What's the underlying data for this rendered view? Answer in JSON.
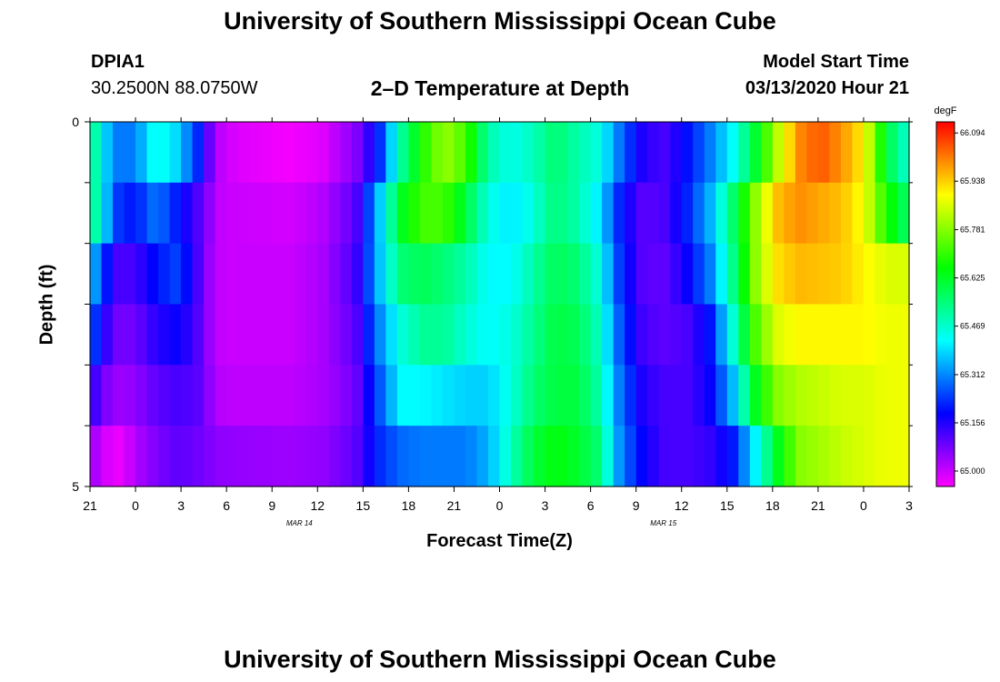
{
  "page": {
    "title_top": "University of Southern Mississippi Ocean Cube",
    "title_bottom": "University of Southern Mississippi Ocean Cube",
    "station_name": "DPIA1",
    "station_coords": "30.2500N 88.0750W",
    "plot_title": "2–D Temperature at Depth",
    "model_start_label": "Model Start Time",
    "model_start_value": "03/13/2020 Hour 21"
  },
  "chart_data": {
    "type": "heatmap",
    "title": "2–D Temperature at Depth",
    "xlabel": "Forecast Time(Z)",
    "ylabel": "Depth (ft)",
    "y_ticks": [
      "0",
      "5"
    ],
    "ylim": [
      0,
      5
    ],
    "x_ticks": [
      "21",
      "0",
      "3",
      "6",
      "9",
      "12",
      "15",
      "18",
      "21",
      "0",
      "3",
      "6",
      "9",
      "12",
      "15",
      "18",
      "21",
      "0",
      "3"
    ],
    "date_labels": [
      {
        "text": "MAR 14",
        "hour_index": 4
      },
      {
        "text": "MAR 15",
        "hour_index": 12
      }
    ],
    "colorbar": {
      "unit": "degF",
      "min": 64.95,
      "max": 66.13,
      "ticks": [
        "66.094",
        "65.938",
        "65.781",
        "65.625",
        "65.469",
        "65.312",
        "65.156",
        "65.000"
      ],
      "tick_values": [
        66.094,
        65.938,
        65.781,
        65.625,
        65.469,
        65.312,
        65.156,
        65.0
      ]
    },
    "depth_layers": 5,
    "hours_start": 0,
    "hours_end": 54,
    "rows": [
      [
        [
          0,
          65.55
        ],
        [
          1,
          65.45
        ],
        [
          2,
          65.3
        ],
        [
          4,
          65.3
        ],
        [
          6,
          65.45
        ],
        [
          8,
          65.38
        ],
        [
          10,
          65.2
        ],
        [
          11,
          65.06
        ],
        [
          12,
          65.0
        ],
        [
          13.5,
          64.98
        ],
        [
          18,
          64.96
        ],
        [
          21,
          64.98
        ],
        [
          24,
          65.06
        ],
        [
          26,
          65.2
        ],
        [
          28,
          65.5
        ],
        [
          30,
          65.68
        ],
        [
          32,
          65.8
        ],
        [
          34,
          65.72
        ],
        [
          36,
          65.5
        ],
        [
          38,
          65.44
        ],
        [
          40,
          65.48
        ],
        [
          42,
          65.56
        ],
        [
          44,
          65.5
        ],
        [
          46,
          65.45
        ],
        [
          48,
          65.28
        ],
        [
          50,
          65.15
        ],
        [
          52,
          65.12
        ],
        [
          54,
          65.2
        ],
        [
          56,
          65.3
        ],
        [
          58,
          65.42
        ],
        [
          60,
          65.6
        ],
        [
          62,
          65.82
        ],
        [
          64,
          66.0
        ],
        [
          66,
          66.05
        ],
        [
          68,
          65.99
        ],
        [
          70,
          65.9
        ],
        [
          72,
          65.6
        ],
        [
          74,
          65.45
        ]
      ],
      [
        [
          0,
          65.52
        ],
        [
          1,
          65.48
        ],
        [
          2,
          65.25
        ],
        [
          4,
          65.2
        ],
        [
          6,
          65.3
        ],
        [
          8,
          65.2
        ],
        [
          10,
          65.1
        ],
        [
          11,
          65.04
        ],
        [
          12,
          65.0
        ],
        [
          18,
          64.99
        ],
        [
          21,
          65.02
        ],
        [
          24,
          65.1
        ],
        [
          26,
          65.35
        ],
        [
          28,
          65.62
        ],
        [
          30,
          65.72
        ],
        [
          32,
          65.72
        ],
        [
          34,
          65.6
        ],
        [
          36,
          65.45
        ],
        [
          38,
          65.4
        ],
        [
          40,
          65.45
        ],
        [
          42,
          65.55
        ],
        [
          44,
          65.5
        ],
        [
          46,
          65.4
        ],
        [
          48,
          65.2
        ],
        [
          50,
          65.1
        ],
        [
          52,
          65.12
        ],
        [
          54,
          65.22
        ],
        [
          56,
          65.35
        ],
        [
          58,
          65.55
        ],
        [
          60,
          65.78
        ],
        [
          62,
          65.95
        ],
        [
          64,
          66.0
        ],
        [
          68,
          65.95
        ],
        [
          70,
          65.88
        ],
        [
          72,
          65.68
        ],
        [
          74,
          65.55
        ]
      ],
      [
        [
          0,
          65.35
        ],
        [
          1,
          65.3
        ],
        [
          2,
          65.12
        ],
        [
          4,
          65.12
        ],
        [
          6,
          65.2
        ],
        [
          8,
          65.25
        ],
        [
          10,
          65.1
        ],
        [
          11,
          65.03
        ],
        [
          12,
          65.0
        ],
        [
          18,
          65.0
        ],
        [
          21,
          65.03
        ],
        [
          24,
          65.12
        ],
        [
          26,
          65.35
        ],
        [
          28,
          65.55
        ],
        [
          30,
          65.58
        ],
        [
          32,
          65.55
        ],
        [
          34,
          65.5
        ],
        [
          36,
          65.42
        ],
        [
          38,
          65.42
        ],
        [
          40,
          65.5
        ],
        [
          42,
          65.58
        ],
        [
          44,
          65.55
        ],
        [
          46,
          65.45
        ],
        [
          48,
          65.22
        ],
        [
          50,
          65.1
        ],
        [
          52,
          65.1
        ],
        [
          54,
          65.18
        ],
        [
          56,
          65.3
        ],
        [
          58,
          65.52
        ],
        [
          60,
          65.78
        ],
        [
          62,
          65.92
        ],
        [
          64,
          65.96
        ],
        [
          68,
          65.94
        ],
        [
          70,
          65.9
        ],
        [
          72,
          65.86
        ],
        [
          74,
          65.86
        ]
      ],
      [
        [
          0,
          65.26
        ],
        [
          1,
          65.2
        ],
        [
          2,
          65.08
        ],
        [
          4,
          65.08
        ],
        [
          6,
          65.15
        ],
        [
          8,
          65.18
        ],
        [
          10,
          65.1
        ],
        [
          11,
          65.03
        ],
        [
          12,
          65.0
        ],
        [
          18,
          65.0
        ],
        [
          21,
          65.03
        ],
        [
          24,
          65.1
        ],
        [
          26,
          65.3
        ],
        [
          28,
          65.45
        ],
        [
          30,
          65.52
        ],
        [
          32,
          65.52
        ],
        [
          34,
          65.46
        ],
        [
          36,
          65.42
        ],
        [
          38,
          65.45
        ],
        [
          40,
          65.52
        ],
        [
          42,
          65.6
        ],
        [
          44,
          65.58
        ],
        [
          46,
          65.48
        ],
        [
          48,
          65.25
        ],
        [
          50,
          65.12
        ],
        [
          52,
          65.1
        ],
        [
          54,
          65.12
        ],
        [
          56,
          65.2
        ],
        [
          58,
          65.45
        ],
        [
          60,
          65.72
        ],
        [
          62,
          65.86
        ],
        [
          64,
          65.9
        ],
        [
          68,
          65.9
        ],
        [
          70,
          65.9
        ],
        [
          72,
          65.88
        ],
        [
          74,
          65.88
        ]
      ],
      [
        [
          0,
          65.15
        ],
        [
          1,
          65.1
        ],
        [
          2,
          65.04
        ],
        [
          4,
          65.05
        ],
        [
          6,
          65.1
        ],
        [
          8,
          65.12
        ],
        [
          10,
          65.1
        ],
        [
          11,
          65.04
        ],
        [
          12,
          65.01
        ],
        [
          18,
          65.01
        ],
        [
          21,
          65.03
        ],
        [
          24,
          65.08
        ],
        [
          26,
          65.25
        ],
        [
          28,
          65.42
        ],
        [
          30,
          65.42
        ],
        [
          32,
          65.4
        ],
        [
          34,
          65.38
        ],
        [
          36,
          65.38
        ],
        [
          38,
          65.45
        ],
        [
          40,
          65.55
        ],
        [
          42,
          65.6
        ],
        [
          44,
          65.6
        ],
        [
          46,
          65.5
        ],
        [
          48,
          65.28
        ],
        [
          50,
          65.15
        ],
        [
          52,
          65.12
        ],
        [
          54,
          65.12
        ],
        [
          56,
          65.18
        ],
        [
          58,
          65.35
        ],
        [
          60,
          65.62
        ],
        [
          62,
          65.78
        ],
        [
          64,
          65.82
        ],
        [
          68,
          65.86
        ],
        [
          70,
          65.86
        ],
        [
          72,
          65.88
        ],
        [
          74,
          65.88
        ]
      ],
      [
        [
          0,
          65.05
        ],
        [
          1,
          65.0
        ],
        [
          2,
          64.97
        ],
        [
          3,
          64.97
        ],
        [
          4,
          65.02
        ],
        [
          6,
          65.07
        ],
        [
          8,
          65.1
        ],
        [
          10,
          65.08
        ],
        [
          12,
          65.05
        ],
        [
          18,
          65.04
        ],
        [
          21,
          65.05
        ],
        [
          24,
          65.1
        ],
        [
          26,
          65.22
        ],
        [
          28,
          65.28
        ],
        [
          30,
          65.3
        ],
        [
          32,
          65.3
        ],
        [
          34,
          65.3
        ],
        [
          36,
          65.35
        ],
        [
          38,
          65.48
        ],
        [
          40,
          65.6
        ],
        [
          42,
          65.65
        ],
        [
          44,
          65.62
        ],
        [
          46,
          65.55
        ],
        [
          48,
          65.3
        ],
        [
          50,
          65.18
        ],
        [
          52,
          65.12
        ],
        [
          54,
          65.12
        ],
        [
          56,
          65.14
        ],
        [
          58,
          65.2
        ],
        [
          60,
          65.4
        ],
        [
          62,
          65.62
        ],
        [
          64,
          65.78
        ],
        [
          68,
          65.84
        ],
        [
          70,
          65.86
        ],
        [
          72,
          65.88
        ],
        [
          74,
          65.88
        ]
      ]
    ]
  }
}
